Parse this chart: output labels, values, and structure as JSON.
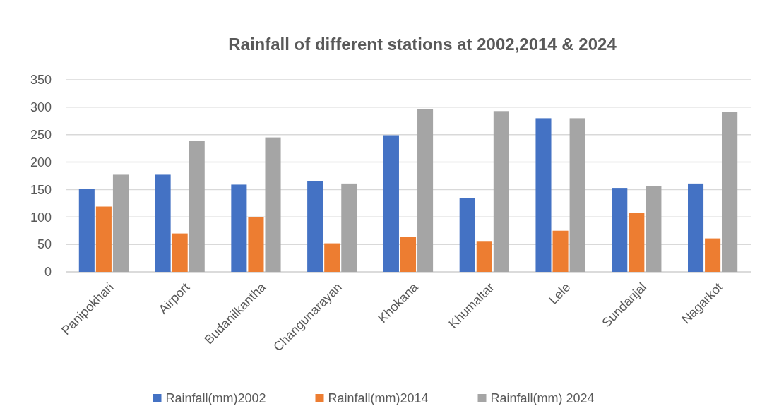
{
  "chart_data": {
    "type": "bar",
    "title": "Rainfall of different stations at 2002,2014 & 2024",
    "categories": [
      "Panipokhari",
      "Airport",
      "Budanilkantha",
      "Changunarayan",
      "Khokana",
      "Khumaltar",
      "Lele",
      "Sundarijal",
      "Nagarkot"
    ],
    "series": [
      {
        "name": "Rainfall(mm)2002",
        "color": "#4472c4",
        "values": [
          151,
          177,
          159,
          165,
          249,
          135,
          280,
          153,
          161
        ]
      },
      {
        "name": "Rainfall(mm)2014",
        "color": "#ed7d31",
        "values": [
          119,
          70,
          100,
          52,
          64,
          55,
          75,
          108,
          61
        ]
      },
      {
        "name": "Rainfall(mm) 2024",
        "color": "#a5a5a5",
        "values": [
          177,
          239,
          245,
          161,
          297,
          293,
          280,
          156,
          291
        ]
      }
    ],
    "ylim": [
      0,
      350
    ],
    "yticks": [
      0,
      50,
      100,
      150,
      200,
      250,
      300,
      350
    ],
    "grid": "y",
    "legend": "bottom"
  }
}
